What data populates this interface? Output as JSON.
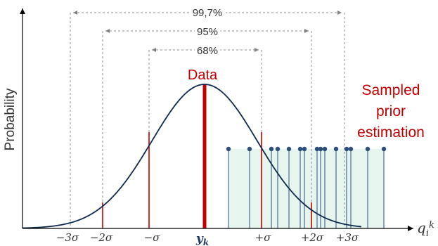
{
  "axis": {
    "ylabel": "Probability",
    "xlabel_main": "q",
    "xlabel_sub": "i",
    "xlabel_sup": "k"
  },
  "ticks": [
    "−3σ",
    "−2σ",
    "−σ",
    "+σ",
    "+2σ",
    "+3σ"
  ],
  "center_tick": {
    "main": "y",
    "sub": "k"
  },
  "intervals": [
    "99,7%",
    "95%",
    "68%"
  ],
  "data_label": "Data",
  "sampled_label": [
    "Sampled",
    "prior",
    "estimation"
  ],
  "colors": {
    "curve": "#0f2a4f",
    "red": "#c00000",
    "sample": "#2d4f7c",
    "sample_fill": "#e6f5ee",
    "dashed": "#7f7f7f"
  }
}
